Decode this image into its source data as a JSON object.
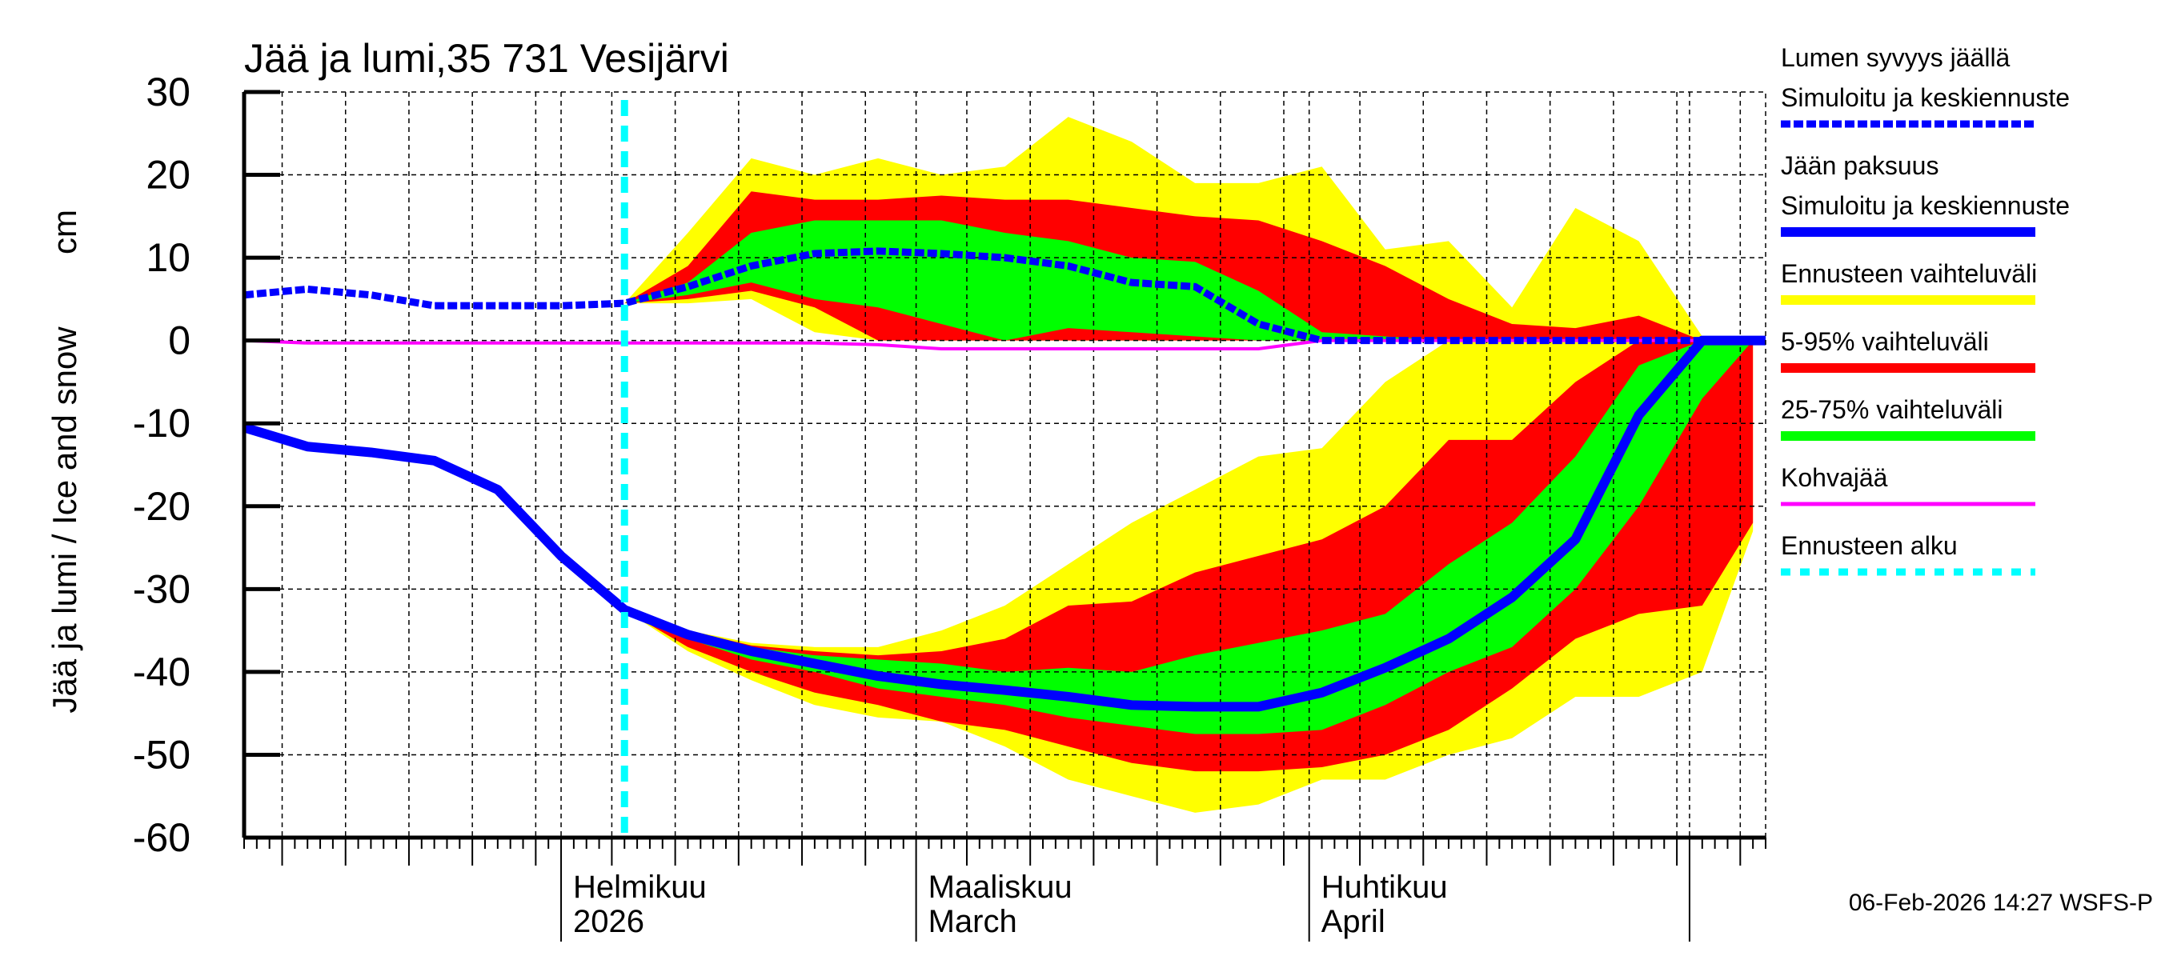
{
  "chart_data": {
    "type": "area",
    "title": "Jää ja lumi,35 731 Vesijärvi",
    "ylabel": "Jää ja lumi / Ice and snow",
    "yunit": "cm",
    "ylim": [
      -60,
      30
    ],
    "yticks": [
      30,
      20,
      10,
      0,
      -10,
      -20,
      -30,
      -40,
      -50,
      -60
    ],
    "xlim": [
      "2026-01-07",
      "2026-05-07"
    ],
    "grid": true,
    "legend_position": "right",
    "x_month_labels": [
      {
        "date": "2026-02-01",
        "line1": "Helmikuu",
        "line2": "2026"
      },
      {
        "date": "2026-03-01",
        "line1": "Maaliskuu",
        "line2": "March"
      },
      {
        "date": "2026-04-01",
        "line1": "Huhtikuu",
        "line2": "April"
      }
    ],
    "forecast_start": "2026-02-06",
    "dates": [
      "2026-01-07",
      "2026-01-12",
      "2026-01-17",
      "2026-01-22",
      "2026-01-27",
      "2026-02-01",
      "2026-02-06",
      "2026-02-11",
      "2026-02-16",
      "2026-02-21",
      "2026-02-26",
      "2026-03-03",
      "2026-03-08",
      "2026-03-13",
      "2026-03-18",
      "2026-03-23",
      "2026-03-28",
      "2026-04-02",
      "2026-04-07",
      "2026-04-12",
      "2026-04-17",
      "2026-04-22",
      "2026-04-27",
      "2026-05-02",
      "2026-05-06"
    ],
    "snow_depth": [
      5.5,
      6.2,
      5.5,
      4.2,
      4.2,
      4.2,
      4.5,
      6.5,
      9,
      10.5,
      10.8,
      10.5,
      10,
      9,
      7,
      6.5,
      2,
      0,
      0,
      0,
      0,
      0,
      0,
      0,
      0
    ],
    "ice_thickness": [
      -10.5,
      -12.8,
      -13.5,
      -14.5,
      -18,
      -26,
      -32.5,
      -35.5,
      -37.5,
      -39,
      -40.5,
      -41.5,
      -42.2,
      -43,
      -44,
      -44.2,
      -44.2,
      -42.5,
      -39.5,
      -36,
      -31,
      -24,
      -9,
      0,
      0
    ],
    "slush_ice": [
      0,
      -0.3,
      -0.3,
      -0.3,
      -0.3,
      -0.3,
      -0.3,
      -0.3,
      -0.3,
      -0.3,
      -0.5,
      -1,
      -1,
      -1,
      -1,
      -1,
      -1,
      0,
      0,
      0,
      0,
      0,
      0,
      0,
      0
    ],
    "snow_bands": {
      "start_index": 6,
      "range_max": [
        4.5,
        13,
        22,
        20,
        22,
        20,
        21,
        27,
        24,
        19,
        19,
        21,
        11,
        12,
        4,
        16,
        12,
        0.5,
        0
      ],
      "p95": [
        4.5,
        9,
        18,
        17,
        17,
        17.5,
        17,
        17,
        16,
        15,
        14.5,
        12,
        9,
        5,
        2,
        1.5,
        3,
        0,
        0
      ],
      "p75": [
        4.5,
        7,
        13,
        14.5,
        14.5,
        14.5,
        13,
        12,
        10,
        9.5,
        6,
        1,
        0.5,
        0,
        0,
        0,
        0,
        0,
        0
      ],
      "p25": [
        4.5,
        5.5,
        7,
        5,
        4,
        2,
        0,
        1.5,
        1,
        0.5,
        0,
        0,
        0,
        0,
        0,
        0,
        0,
        0,
        0
      ],
      "p5": [
        4.5,
        5,
        6,
        4,
        0,
        0,
        0,
        0,
        0,
        0,
        0,
        0,
        0,
        0,
        0,
        0,
        0,
        0,
        0
      ],
      "range_min": [
        4.5,
        4.5,
        5,
        1,
        0,
        0,
        0,
        0,
        0,
        0,
        0,
        0,
        0,
        0,
        0,
        0,
        0,
        0,
        0
      ]
    },
    "ice_bands": {
      "start_index": 6,
      "range_max": [
        -32.5,
        -35,
        -36.5,
        -37,
        -37,
        -35,
        -32,
        -27,
        -22,
        -18,
        -14,
        -13,
        -5,
        0,
        0,
        0,
        0,
        0,
        0
      ],
      "p95": [
        -32.5,
        -35,
        -36.8,
        -37.5,
        -38,
        -37.5,
        -36,
        -32,
        -31.5,
        -28,
        -26,
        -24,
        -20,
        -12,
        -12,
        -5,
        0,
        0,
        0
      ],
      "p75": [
        -32.5,
        -35.5,
        -37,
        -38,
        -38.5,
        -39,
        -40,
        -39.5,
        -40,
        -38,
        -36.5,
        -35,
        -33,
        -27,
        -22,
        -14,
        -3,
        0,
        0
      ],
      "p25": [
        -32.5,
        -36,
        -38.5,
        -40,
        -42,
        -43,
        -44,
        -45.5,
        -46.5,
        -47.5,
        -47.5,
        -47,
        -44,
        -40,
        -37,
        -30,
        -20,
        -7,
        0
      ],
      "p5": [
        -32.5,
        -37,
        -40,
        -42.5,
        -44,
        -46,
        -47,
        -49,
        -51,
        -52,
        -52,
        -51.5,
        -50,
        -47,
        -42,
        -36,
        -33,
        -32,
        -22
      ],
      "range_min": [
        -32.5,
        -37.5,
        -41,
        -44,
        -45.5,
        -46,
        -49,
        -53,
        -55,
        -57,
        -56,
        -53,
        -53,
        -50,
        -48,
        -43,
        -43,
        -40,
        -23
      ]
    },
    "colors": {
      "snow": "#0000ff",
      "ice": "#0000ff",
      "range": "#ffff00",
      "p5_95": "#ff0000",
      "p25_75": "#00ff00",
      "slush": "#ff00ff",
      "forecast_start": "#00ffff"
    }
  },
  "legend": [
    {
      "line1": "Lumen syvyys jäällä",
      "line2": "Simuloitu ja keskiennuste",
      "style": "dotted-thick",
      "color": "#0000ff"
    },
    {
      "line1": "Jään paksuus",
      "line2": "Simuloitu ja keskiennuste",
      "style": "solid-thick",
      "color": "#0000ff"
    },
    {
      "line1": "Ennusteen vaihteluväli",
      "style": "band",
      "color": "#ffff00"
    },
    {
      "line1": "5-95% vaihteluväli",
      "style": "band",
      "color": "#ff0000"
    },
    {
      "line1": "25-75% vaihteluväli",
      "style": "band",
      "color": "#00ff00"
    },
    {
      "line1": "Kohvajää",
      "style": "thin",
      "color": "#ff00ff"
    },
    {
      "line1": "Ennusteen alku",
      "style": "dashed",
      "color": "#00ffff"
    }
  ],
  "footer": "06-Feb-2026 14:27 WSFS-P"
}
